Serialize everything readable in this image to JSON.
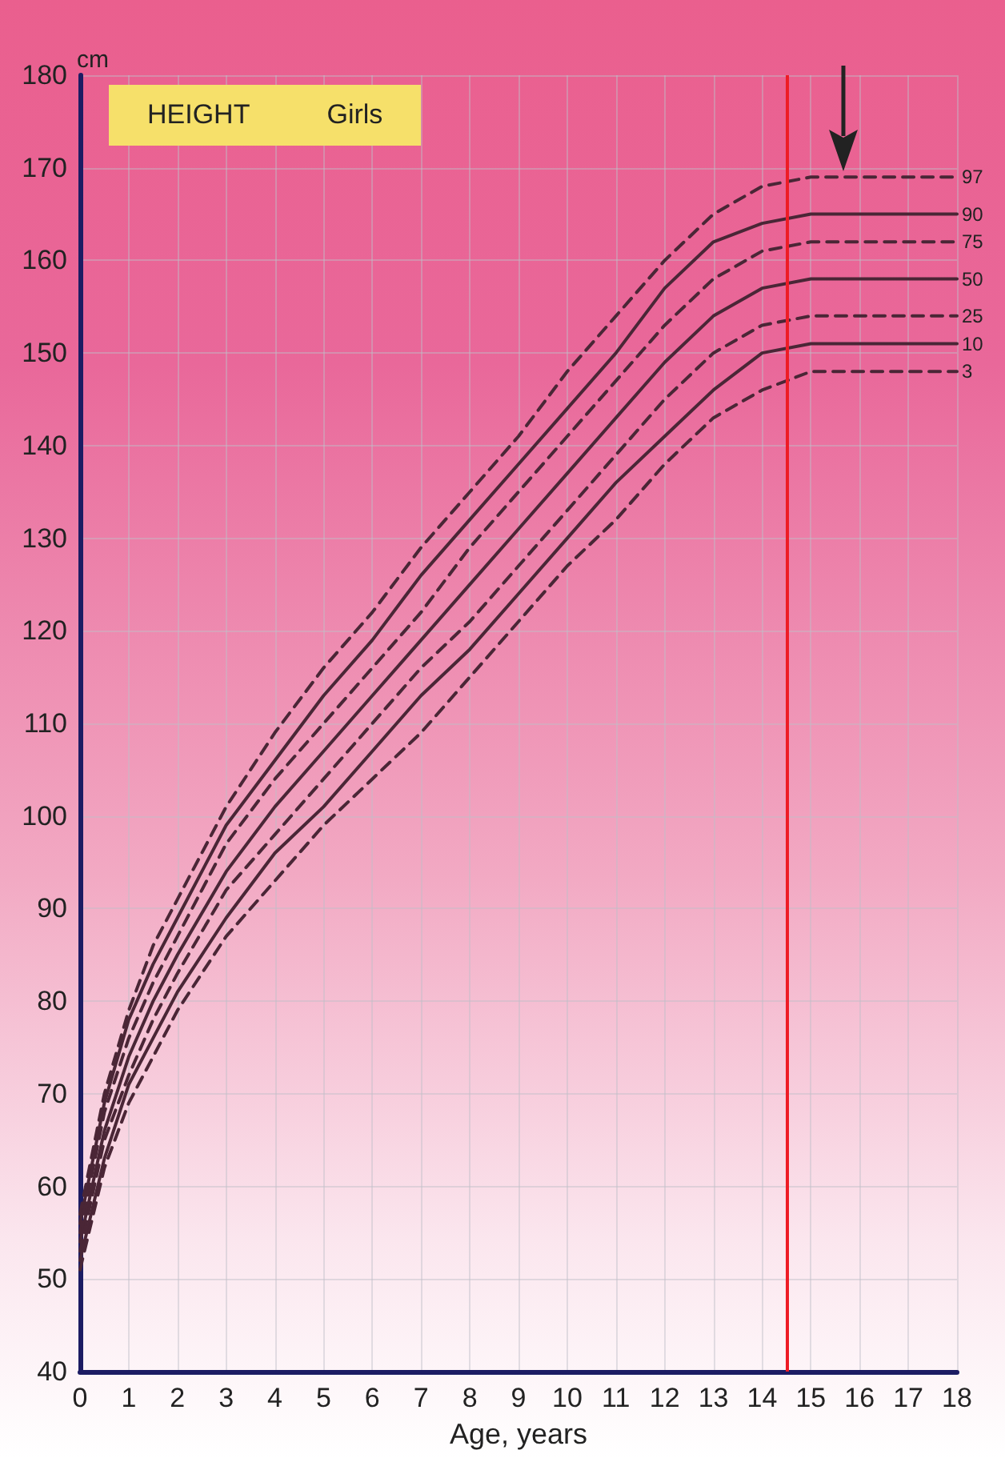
{
  "chart_data": {
    "type": "line",
    "title": "HEIGHT",
    "subtitle": "Girls",
    "xlabel": "Age, years",
    "ylabel": "cm",
    "x": [
      0,
      0.5,
      1,
      1.5,
      2,
      3,
      4,
      5,
      6,
      7,
      8,
      9,
      10,
      11,
      12,
      13,
      14,
      15,
      16,
      17,
      18
    ],
    "xlim": [
      0,
      18
    ],
    "xticks": [
      0,
      1,
      2,
      3,
      4,
      5,
      6,
      7,
      8,
      9,
      10,
      11,
      12,
      13,
      14,
      15,
      16,
      17,
      18
    ],
    "ylim": [
      40,
      180
    ],
    "yticks": [
      40,
      50,
      60,
      70,
      80,
      90,
      100,
      110,
      120,
      130,
      140,
      150,
      160,
      170,
      180
    ],
    "grid": true,
    "legend": false,
    "marker": "none",
    "series": [
      {
        "name": "97",
        "color": "#4a2636",
        "line_style": "dashed",
        "values": [
          57,
          70,
          79,
          86,
          91,
          101,
          109,
          116,
          122,
          129,
          135,
          141,
          148,
          154,
          160,
          165,
          168,
          169,
          169,
          169,
          169
        ]
      },
      {
        "name": "90",
        "color": "#4a2636",
        "line_style": "solid",
        "values": [
          56,
          69,
          78,
          84,
          89,
          99,
          106,
          113,
          119,
          126,
          132,
          138,
          144,
          150,
          157,
          162,
          164,
          165,
          165,
          165,
          165
        ]
      },
      {
        "name": "75",
        "color": "#4a2636",
        "line_style": "dashed",
        "values": [
          55,
          68,
          76,
          82,
          87,
          97,
          104,
          110,
          116,
          122,
          129,
          135,
          141,
          147,
          153,
          158,
          161,
          162,
          162,
          162,
          162
        ]
      },
      {
        "name": "50",
        "color": "#4a2636",
        "line_style": "solid",
        "values": [
          54,
          66,
          74,
          80,
          85,
          94,
          101,
          107,
          113,
          119,
          125,
          131,
          137,
          143,
          149,
          154,
          157,
          158,
          158,
          158,
          158
        ]
      },
      {
        "name": "25",
        "color": "#4a2636",
        "line_style": "dashed",
        "values": [
          53,
          65,
          72,
          78,
          83,
          92,
          98,
          104,
          110,
          116,
          121,
          127,
          133,
          139,
          145,
          150,
          153,
          154,
          154,
          154,
          154
        ]
      },
      {
        "name": "10",
        "color": "#4a2636",
        "line_style": "solid",
        "values": [
          52,
          63,
          71,
          76,
          81,
          89,
          96,
          101,
          107,
          113,
          118,
          124,
          130,
          136,
          141,
          146,
          150,
          151,
          151,
          151,
          151
        ]
      },
      {
        "name": "3",
        "color": "#4a2636",
        "line_style": "dashed",
        "values": [
          51,
          62,
          69,
          74,
          79,
          87,
          93,
          99,
          104,
          109,
          115,
          121,
          127,
          132,
          138,
          143,
          146,
          148,
          148,
          148,
          148
        ]
      }
    ],
    "ref_lines": [
      {
        "axis": "x",
        "value": 14.5,
        "color": "#ee1c25"
      }
    ]
  }
}
